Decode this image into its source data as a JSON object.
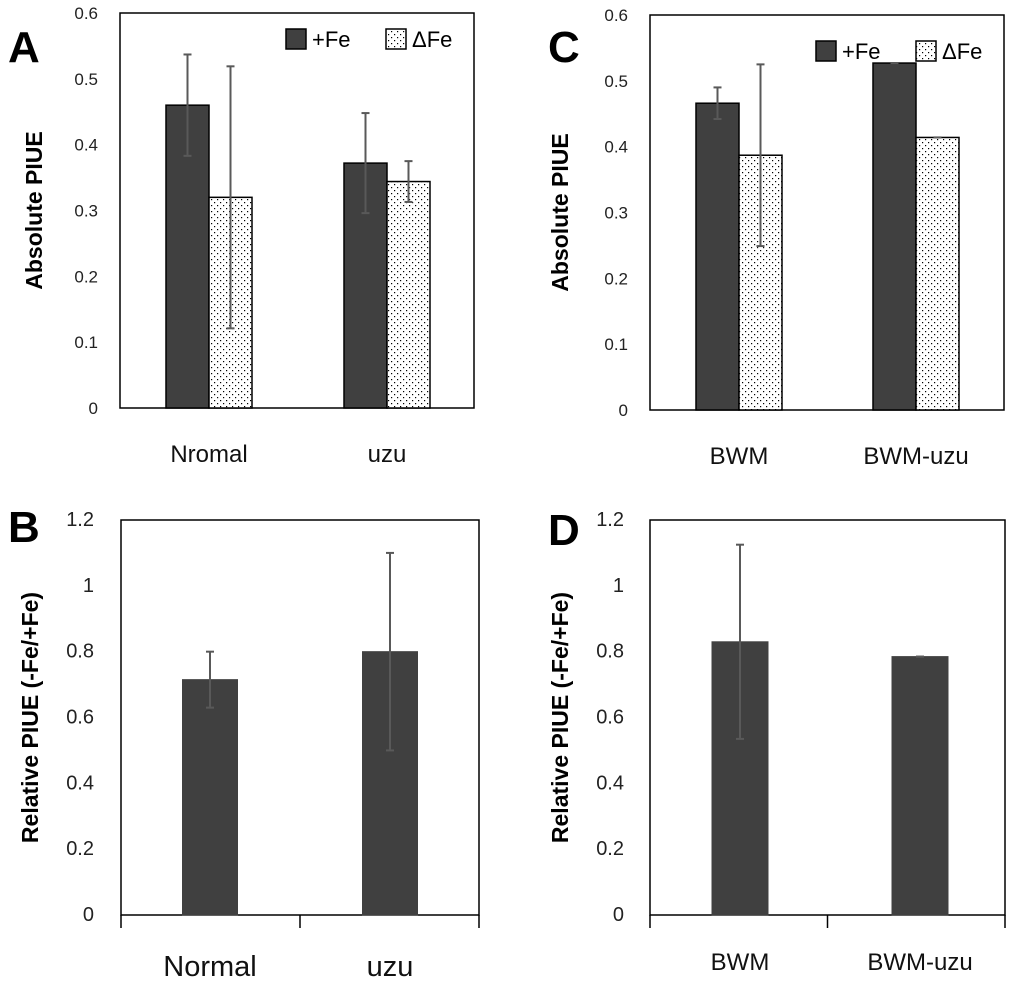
{
  "colors": {
    "fe_plus": "#404040",
    "fe_minus_fill": "#ffffff",
    "error_bar": "#595959",
    "axis": "#000000"
  },
  "chart_data": [
    {
      "panel": "A",
      "type": "bar",
      "ylabel": "Absolute PIUE",
      "ylim": [
        0,
        0.6
      ],
      "yticks": [
        "0",
        "0.1",
        "0.2",
        "0.3",
        "0.4",
        "0.5",
        "0.6"
      ],
      "categories": [
        "Nromal",
        "uzu"
      ],
      "legend": {
        "placement": "top-right"
      },
      "series": [
        {
          "name": "+Fe",
          "pattern": "solid",
          "values": [
            0.46,
            0.372
          ],
          "errors": [
            0.077,
            0.076
          ]
        },
        {
          "name": "ΔFe",
          "pattern": "dots",
          "values": [
            0.32,
            0.344
          ],
          "errors": [
            0.199,
            0.031
          ]
        }
      ]
    },
    {
      "panel": "B",
      "type": "bar",
      "ylabel": "Relative PIUE (-Fe/+Fe)",
      "ylim": [
        0,
        1.2
      ],
      "yticks": [
        "0",
        "0.2",
        "0.4",
        "0.6",
        "0.8",
        "1",
        "1.2"
      ],
      "categories": [
        "Normal",
        "uzu"
      ],
      "series": [
        {
          "name": "Relative",
          "pattern": "solid",
          "values": [
            0.715,
            0.8
          ],
          "errors": [
            0.085,
            0.3
          ]
        }
      ]
    },
    {
      "panel": "C",
      "type": "bar",
      "ylabel": "Absolute PIUE",
      "ylim": [
        0,
        0.6
      ],
      "yticks": [
        "0",
        "0.1",
        "0.2",
        "0.3",
        "0.4",
        "0.5",
        "0.6"
      ],
      "categories": [
        "BWM",
        "BWM-uzu"
      ],
      "legend": {
        "placement": "top-right"
      },
      "series": [
        {
          "name": "+Fe",
          "pattern": "solid",
          "values": [
            0.466,
            0.527
          ],
          "errors": [
            0.024,
            0.0
          ]
        },
        {
          "name": "ΔFe",
          "pattern": "dots",
          "values": [
            0.387,
            0.414
          ],
          "errors": [
            0.138,
            0.0
          ]
        }
      ]
    },
    {
      "panel": "D",
      "type": "bar",
      "ylabel": "Relative PIUE (-Fe/+Fe)",
      "ylim": [
        0,
        1.2
      ],
      "yticks": [
        "0",
        "0.2",
        "0.4",
        "0.6",
        "0.8",
        "1",
        "1.2"
      ],
      "categories": [
        "BWM",
        "BWM-uzu"
      ],
      "series": [
        {
          "name": "Relative",
          "pattern": "solid",
          "values": [
            0.83,
            0.785
          ],
          "errors": [
            0.295,
            0.0
          ]
        }
      ]
    }
  ]
}
